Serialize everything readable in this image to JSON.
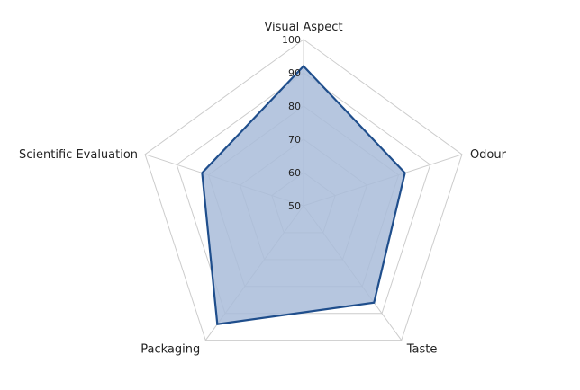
{
  "chart_data": {
    "type": "radar",
    "axes": [
      "Visual Aspect",
      "Odour",
      "Taste",
      "Packaging",
      "Scientific Evaluation"
    ],
    "rlim": [
      50,
      100
    ],
    "ticks": [
      "50",
      "60",
      "70",
      "80",
      "90",
      "100"
    ],
    "tick_values": [
      50,
      60,
      70,
      80,
      90,
      100
    ],
    "series": [
      {
        "values": [
          92,
          82,
          86,
          94,
          82
        ]
      }
    ],
    "grid": true,
    "legend": "none",
    "colors": {
      "fill": "#a9bcd9",
      "stroke": "#1f4e8c",
      "grid": "#cccccc"
    }
  }
}
